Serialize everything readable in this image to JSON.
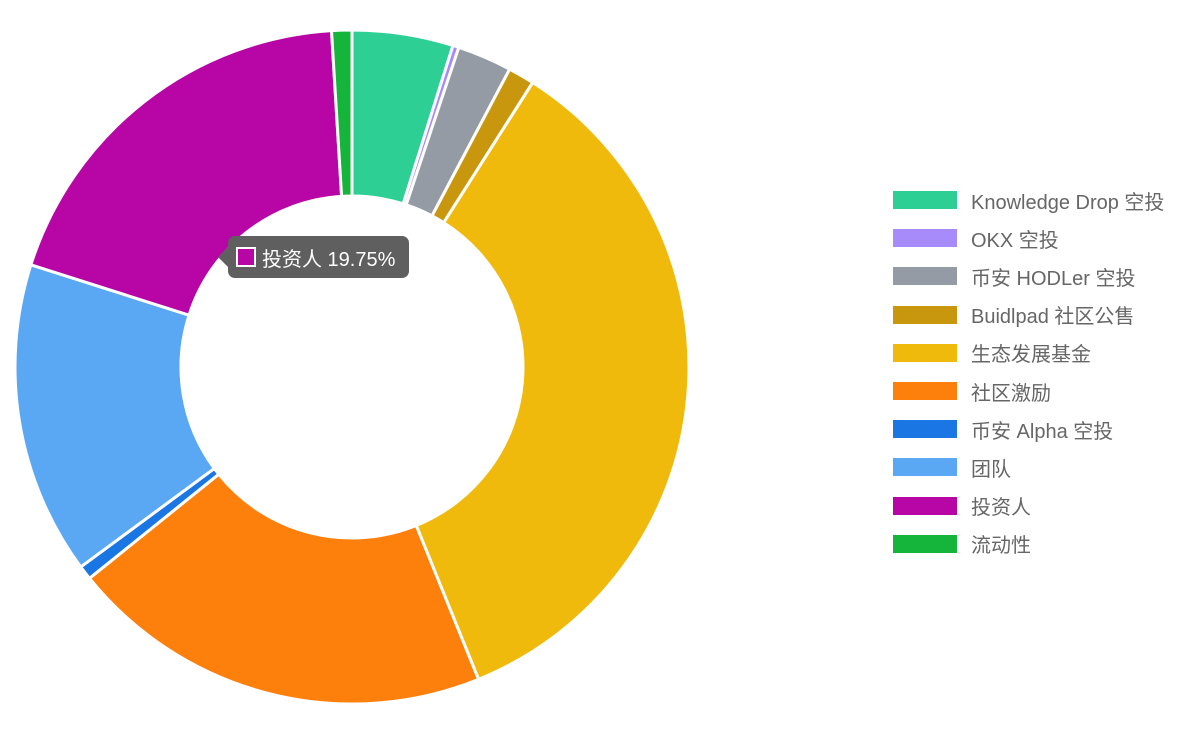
{
  "chart_data": {
    "type": "doughnut",
    "categories": [
      "Knowledge Drop 空投",
      "OKX 空投",
      "币安 HODLer 空投",
      "Buidlpad 社区公售",
      "生态发展基金",
      "社区激励",
      "币安 Alpha 空投",
      "团队",
      "投资人",
      "流动性"
    ],
    "values": [
      5.0,
      0.3,
      2.7,
      1.3,
      36.0,
      21.0,
      0.7,
      15.5,
      19.75,
      1.0
    ],
    "colors": [
      "#2ecf94",
      "#a78bfa",
      "#949ba4",
      "#c9970e",
      "#f0ba0c",
      "#fd7f0c",
      "#1976e3",
      "#5aa7f4",
      "#b705a6",
      "#14b53a"
    ],
    "legend_position": "right"
  },
  "tooltip": {
    "label": "投资人 19.75%",
    "series_index": 8
  }
}
